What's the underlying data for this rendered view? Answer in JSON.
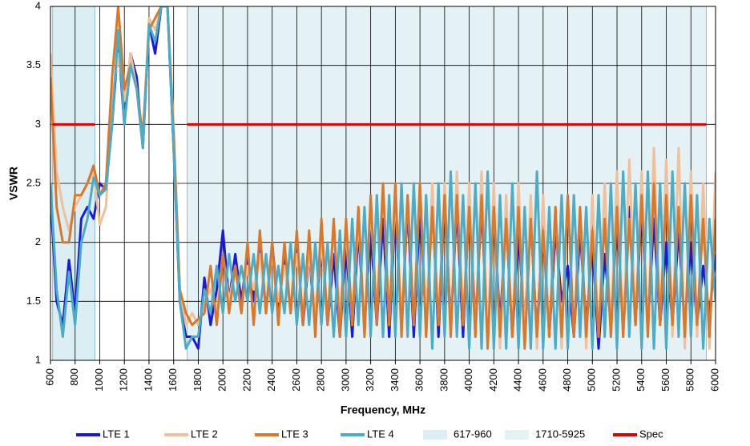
{
  "chart_data": {
    "type": "line",
    "xlabel": "Frequency, MHz",
    "ylabel": "VSWR",
    "xlim": [
      600,
      6000
    ],
    "ylim": [
      1,
      4
    ],
    "xticks": [
      600,
      800,
      1000,
      1200,
      1400,
      1600,
      1800,
      2000,
      2200,
      2400,
      2600,
      2800,
      3000,
      3200,
      3400,
      3600,
      3800,
      4000,
      4200,
      4400,
      4600,
      4800,
      5000,
      5200,
      5400,
      5600,
      5800,
      6000
    ],
    "yticks": [
      1,
      1.5,
      2,
      2.5,
      3,
      3.5,
      4
    ],
    "grid": true,
    "legend": "bottom",
    "x": [
      600,
      650,
      700,
      750,
      800,
      850,
      900,
      950,
      1000,
      1050,
      1100,
      1150,
      1200,
      1250,
      1300,
      1350,
      1400,
      1450,
      1500,
      1550,
      1600,
      1650,
      1700,
      1750,
      1800,
      1850,
      1900,
      1950,
      2000,
      2050,
      2100,
      2150,
      2200,
      2250,
      2300,
      2350,
      2400,
      2450,
      2500,
      2550,
      2600,
      2650,
      2700,
      2750,
      2800,
      2850,
      2900,
      2950,
      3000,
      3050,
      3100,
      3150,
      3200,
      3250,
      3300,
      3350,
      3400,
      3450,
      3500,
      3550,
      3600,
      3650,
      3700,
      3750,
      3800,
      3850,
      3900,
      3950,
      4000,
      4050,
      4100,
      4150,
      4200,
      4250,
      4300,
      4350,
      4400,
      4450,
      4500,
      4550,
      4600,
      4650,
      4700,
      4750,
      4800,
      4850,
      4900,
      4950,
      5000,
      5050,
      5100,
      5150,
      5200,
      5250,
      5300,
      5350,
      5400,
      5450,
      5500,
      5550,
      5600,
      5650,
      5700,
      5750,
      5800,
      5850,
      5900,
      5950,
      6000
    ],
    "series": [
      {
        "name": "LTE 1",
        "color": "#1a1adc",
        "values": [
          2.4,
          1.5,
          1.3,
          1.85,
          1.4,
          2.2,
          2.3,
          2.2,
          2.5,
          2.45,
          3.0,
          3.7,
          3.0,
          3.6,
          3.4,
          2.8,
          3.85,
          3.6,
          4,
          4,
          2.8,
          1.5,
          1.2,
          1.2,
          1.1,
          1.7,
          1.3,
          1.6,
          2.1,
          1.5,
          1.9,
          1.5,
          1.9,
          1.5,
          2.0,
          1.4,
          2.0,
          1.4,
          1.9,
          1.4,
          2.0,
          1.3,
          1.9,
          1.3,
          2.0,
          1.3,
          1.9,
          1.2,
          2.0,
          1.2,
          2.1,
          1.3,
          2.1,
          1.3,
          2.2,
          1.2,
          2.3,
          1.3,
          2.3,
          1.2,
          2.3,
          1.3,
          2.4,
          1.2,
          2.4,
          1.3,
          2.3,
          1.2,
          2.4,
          1.3,
          2.3,
          1.2,
          2.3,
          1.3,
          2.2,
          1.2,
          2.1,
          1.3,
          2.2,
          1.2,
          2.3,
          1.2,
          2.1,
          1.5,
          1.8,
          1.2,
          2.1,
          1.3,
          2.0,
          1.1,
          1.9,
          1.3,
          2.2,
          1.3,
          2.3,
          1.3,
          2.3,
          1.3,
          2.2,
          1.3,
          2.0,
          1.3,
          2.1,
          1.3,
          2.0,
          1.3,
          1.8,
          1.4,
          1.9
        ]
      },
      {
        "name": "LTE 2",
        "color": "#f0c09a",
        "values": [
          3.6,
          2.6,
          2.3,
          2.1,
          2.3,
          2.4,
          2.5,
          2.6,
          2.15,
          2.3,
          3.2,
          3.6,
          3.2,
          3.6,
          3.3,
          2.9,
          3.9,
          3.8,
          4,
          4,
          3.0,
          1.6,
          1.3,
          1.4,
          1.3,
          1.5,
          1.6,
          1.4,
          1.9,
          1.5,
          1.8,
          1.4,
          1.8,
          1.6,
          1.9,
          1.4,
          1.9,
          1.5,
          1.8,
          1.4,
          1.9,
          1.4,
          1.9,
          1.4,
          2.0,
          1.3,
          2.1,
          1.4,
          2.1,
          1.3,
          2.2,
          1.3,
          2.3,
          1.4,
          2.5,
          1.3,
          2.4,
          1.3,
          2.4,
          1.3,
          2.5,
          1.3,
          2.5,
          1.3,
          2.5,
          1.2,
          2.6,
          1.3,
          2.5,
          1.2,
          2.6,
          1.2,
          2.5,
          1.1,
          2.4,
          1.2,
          2.5,
          1.2,
          2.4,
          1.1,
          2.4,
          1.2,
          2.3,
          1.1,
          2.4,
          1.2,
          2.3,
          1.1,
          2.4,
          1.2,
          2.5,
          1.2,
          2.6,
          1.2,
          2.7,
          1.3,
          2.6,
          1.2,
          2.8,
          1.3,
          2.7,
          1.2,
          2.8,
          1.1,
          2.6,
          1.2,
          2.5,
          1.1,
          2.6
        ]
      },
      {
        "name": "LTE 3",
        "color": "#d9782a",
        "values": [
          3.4,
          2.3,
          2.0,
          2.0,
          2.4,
          2.4,
          2.5,
          2.65,
          2.4,
          2.5,
          3.4,
          4.0,
          3.3,
          3.5,
          3.3,
          2.9,
          3.8,
          3.9,
          4,
          4,
          2.9,
          1.6,
          1.4,
          1.3,
          1.35,
          1.4,
          1.8,
          1.3,
          1.9,
          1.4,
          1.8,
          1.4,
          2.0,
          1.3,
          2.1,
          1.4,
          2.0,
          1.3,
          2.0,
          1.4,
          2.1,
          1.3,
          2.1,
          1.2,
          2.2,
          1.3,
          2.2,
          1.2,
          2.2,
          1.3,
          2.3,
          1.2,
          2.4,
          1.3,
          2.5,
          1.3,
          2.5,
          1.2,
          2.4,
          1.3,
          2.5,
          1.2,
          2.3,
          1.3,
          2.4,
          1.2,
          2.4,
          1.3,
          2.3,
          1.2,
          2.4,
          1.1,
          2.3,
          1.2,
          2.2,
          1.2,
          2.3,
          1.1,
          2.2,
          1.2,
          2.1,
          1.2,
          2.3,
          1.2,
          2.4,
          1.2,
          2.3,
          1.2,
          2.1,
          1.2,
          2.2,
          1.2,
          2.3,
          1.2,
          2.2,
          1.3,
          2.4,
          1.2,
          2.5,
          1.3,
          2.4,
          1.3,
          2.3,
          1.2,
          2.4,
          1.3,
          2.2,
          1.2,
          2.2
        ]
      },
      {
        "name": "LTE 4",
        "color": "#4bacc6",
        "values": [
          2.5,
          1.6,
          1.2,
          1.75,
          1.3,
          2.0,
          2.2,
          2.55,
          2.4,
          2.45,
          3.0,
          3.8,
          3.0,
          3.5,
          3.3,
          2.8,
          3.85,
          3.7,
          4,
          4,
          2.8,
          1.5,
          1.1,
          1.2,
          1.2,
          1.6,
          1.4,
          1.8,
          1.4,
          1.9,
          1.5,
          1.8,
          1.5,
          1.9,
          1.4,
          1.9,
          1.4,
          1.8,
          1.4,
          2.0,
          1.3,
          1.9,
          1.3,
          2.0,
          1.3,
          2.0,
          1.2,
          2.1,
          1.2,
          2.2,
          1.3,
          2.3,
          1.2,
          2.4,
          1.2,
          2.4,
          1.2,
          2.5,
          1.2,
          2.5,
          1.2,
          2.4,
          1.1,
          2.5,
          1.2,
          2.6,
          1.2,
          2.4,
          1.1,
          2.5,
          1.1,
          2.6,
          1.1,
          2.4,
          1.1,
          2.5,
          1.1,
          2.3,
          1.1,
          2.6,
          1.1,
          2.3,
          1.1,
          2.4,
          1.1,
          2.4,
          1.2,
          2.3,
          1.1,
          2.4,
          1.2,
          2.5,
          1.1,
          2.6,
          1.2,
          2.5,
          1.1,
          2.6,
          1.1,
          2.5,
          1.1,
          2.6,
          1.2,
          2.5,
          1.2,
          2.4,
          1.1,
          2.2,
          1.5
        ]
      }
    ],
    "bands": [
      {
        "name": "617-960",
        "range": [
          617,
          960
        ],
        "color": "#daeef3"
      },
      {
        "name": "1710-5925",
        "range": [
          1710,
          5925
        ],
        "color": "#e4f2f6"
      }
    ],
    "spec": {
      "name": "Spec",
      "color": "#e00000",
      "value": 3,
      "ranges": [
        [
          617,
          960
        ],
        [
          1710,
          5925
        ]
      ]
    }
  }
}
